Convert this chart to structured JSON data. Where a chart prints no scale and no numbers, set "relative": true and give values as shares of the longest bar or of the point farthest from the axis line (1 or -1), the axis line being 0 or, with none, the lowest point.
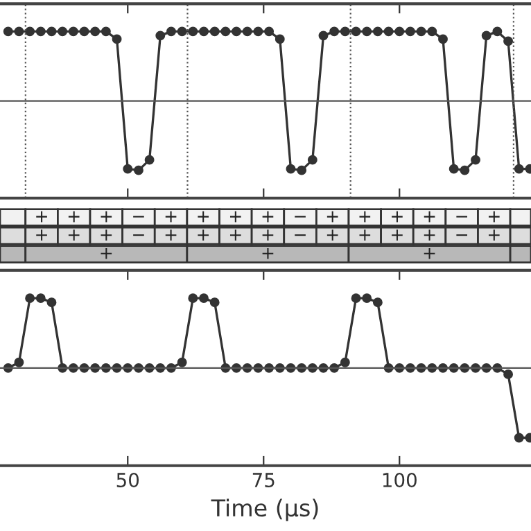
{
  "chart_data": [
    {
      "type": "line",
      "relative": true,
      "xlim": [
        26.5,
        124.2
      ],
      "xticks": [
        50,
        75,
        100
      ],
      "tick_labels": false,
      "marker": "circle",
      "line_style": "solid",
      "x": [
        28,
        30,
        32,
        34,
        36,
        38,
        40,
        42,
        44,
        46,
        48,
        50,
        52,
        54,
        56,
        58,
        60,
        62,
        64,
        66,
        68,
        70,
        72,
        74,
        76,
        78,
        80,
        82,
        84,
        86,
        88,
        90,
        92,
        94,
        96,
        98,
        100,
        102,
        104,
        106,
        108,
        110,
        112,
        114,
        116,
        118,
        120,
        122,
        124
      ],
      "series": [
        {
          "color": "#333333",
          "values": [
            1,
            1,
            1,
            1,
            1,
            1,
            1,
            1,
            1,
            1,
            0.89,
            -0.98,
            -1,
            -0.85,
            0.94,
            1,
            1,
            1,
            1,
            1,
            1,
            1,
            1,
            1,
            1,
            0.89,
            -0.98,
            -1,
            -0.85,
            0.94,
            1,
            1,
            1,
            1,
            1,
            1,
            1,
            1,
            1,
            1,
            0.89,
            -0.98,
            -1,
            -0.85,
            0.94,
            1,
            0.86,
            -0.98,
            -0.98
          ]
        }
      ],
      "ref_lines": [
        {
          "axis": "x",
          "value": 31.2,
          "color": "#555555",
          "line_style": "dotted"
        },
        {
          "axis": "x",
          "value": 61,
          "color": "#555555",
          "line_style": "dotted"
        },
        {
          "axis": "x",
          "value": 91,
          "color": "#555555",
          "line_style": "dotted"
        },
        {
          "axis": "x",
          "value": 121,
          "color": "#555555",
          "line_style": "dotted"
        }
      ]
    },
    {
      "type": "other",
      "cell_labels": [
        [
          null,
          "+",
          "+",
          "+",
          "−",
          "+",
          "+",
          "+",
          "+",
          "−",
          "+",
          "+",
          "+",
          "+",
          "−",
          "+",
          null
        ],
        [
          null,
          "+",
          "+",
          "+",
          "−",
          "+",
          "+",
          "+",
          "+",
          "−",
          "+",
          "+",
          "+",
          "+",
          "−",
          "+",
          null
        ],
        [
          null,
          "+",
          "+",
          "+",
          null
        ]
      ]
    },
    {
      "type": "line",
      "relative": true,
      "xlim": [
        26.5,
        124.2
      ],
      "xticks": [
        50,
        75,
        100
      ],
      "tick_labels": "x",
      "xlabel": "Time (µs)",
      "marker": "circle",
      "line_style": "solid",
      "x": [
        28,
        30,
        32,
        34,
        36,
        38,
        40,
        42,
        44,
        46,
        48,
        50,
        52,
        54,
        56,
        58,
        60,
        62,
        64,
        66,
        68,
        70,
        72,
        74,
        76,
        78,
        80,
        82,
        84,
        86,
        88,
        90,
        92,
        94,
        96,
        98,
        100,
        102,
        104,
        106,
        108,
        110,
        112,
        114,
        116,
        118,
        120,
        122,
        124
      ],
      "series": [
        {
          "color": "#333333",
          "values": [
            0,
            0.08,
            1,
            1,
            0.94,
            0,
            0,
            0,
            0,
            0,
            0,
            0,
            0,
            0,
            0,
            0,
            0.08,
            1,
            1,
            0.94,
            0,
            0,
            0,
            0,
            0,
            0,
            0,
            0,
            0,
            0,
            0,
            0.08,
            1,
            1,
            0.94,
            0,
            0,
            0,
            0,
            0,
            0,
            0,
            0,
            0,
            0,
            0,
            -0.09,
            -1,
            -1
          ]
        }
      ]
    }
  ]
}
